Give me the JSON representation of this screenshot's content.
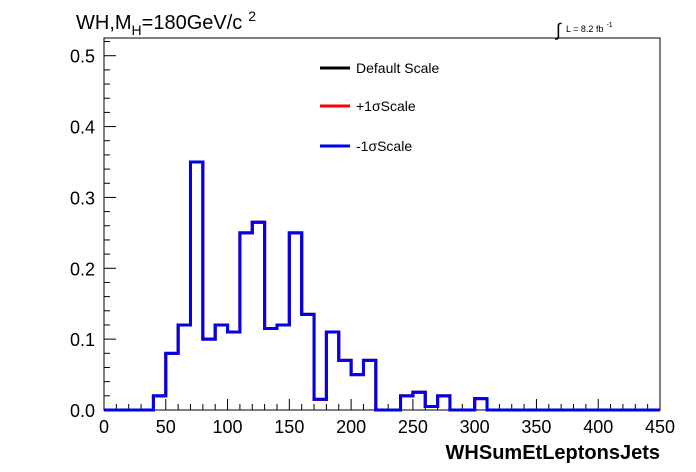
{
  "chart_data": {
    "type": "line",
    "title_parts": {
      "main": "WH,M",
      "sub": "H",
      "rest": "=180GeV/c",
      "sup": "2"
    },
    "lumi": {
      "integral": "∫",
      "text": "L = 8.2 fb",
      "sup": "-1"
    },
    "xlabel": "WHSumEtLeptonsJets",
    "ylabel": "",
    "xlim": [
      0,
      450
    ],
    "ylim": [
      0,
      0.525
    ],
    "x_ticks": [
      "0",
      "50",
      "100",
      "150",
      "200",
      "250",
      "300",
      "350",
      "400",
      "450"
    ],
    "y_ticks": [
      "0.0",
      "0.1",
      "0.2",
      "0.3",
      "0.4",
      "0.5"
    ],
    "bin_width": 10,
    "bin_edges_start": 0,
    "legend_position": "top-center",
    "series": [
      {
        "name": "Default Scale",
        "color": "#000000",
        "values": [
          0,
          0,
          0,
          0,
          0.02,
          0.08,
          0.12,
          0.35,
          0.1,
          0.12,
          0.11,
          0.25,
          0.265,
          0.115,
          0.12,
          0.25,
          0.135,
          0.015,
          0.11,
          0.07,
          0.05,
          0.07,
          0,
          0,
          0.02,
          0.025,
          0.005,
          0.02,
          0,
          0,
          0.016,
          0,
          0,
          0,
          0,
          0,
          0,
          0,
          0,
          0,
          0,
          0,
          0,
          0,
          0
        ]
      },
      {
        "name": "+1σScale",
        "color": "#ff0000",
        "values": [
          0,
          0,
          0,
          0,
          0.02,
          0.08,
          0.12,
          0.35,
          0.1,
          0.12,
          0.11,
          0.25,
          0.265,
          0.115,
          0.12,
          0.25,
          0.135,
          0.015,
          0.11,
          0.07,
          0.05,
          0.07,
          0,
          0,
          0.02,
          0.025,
          0.005,
          0.02,
          0,
          0,
          0.016,
          0,
          0,
          0,
          0,
          0,
          0,
          0,
          0,
          0,
          0,
          0,
          0,
          0,
          0
        ]
      },
      {
        "name": "-1σScale",
        "color": "#0000ee",
        "values": [
          0,
          0,
          0,
          0,
          0.02,
          0.08,
          0.12,
          0.35,
          0.1,
          0.12,
          0.11,
          0.25,
          0.265,
          0.115,
          0.12,
          0.25,
          0.135,
          0.015,
          0.11,
          0.07,
          0.05,
          0.07,
          0,
          0,
          0.02,
          0.025,
          0.005,
          0.02,
          0,
          0,
          0.016,
          0,
          0,
          0,
          0,
          0,
          0,
          0,
          0,
          0,
          0,
          0,
          0,
          0,
          0
        ]
      }
    ]
  }
}
